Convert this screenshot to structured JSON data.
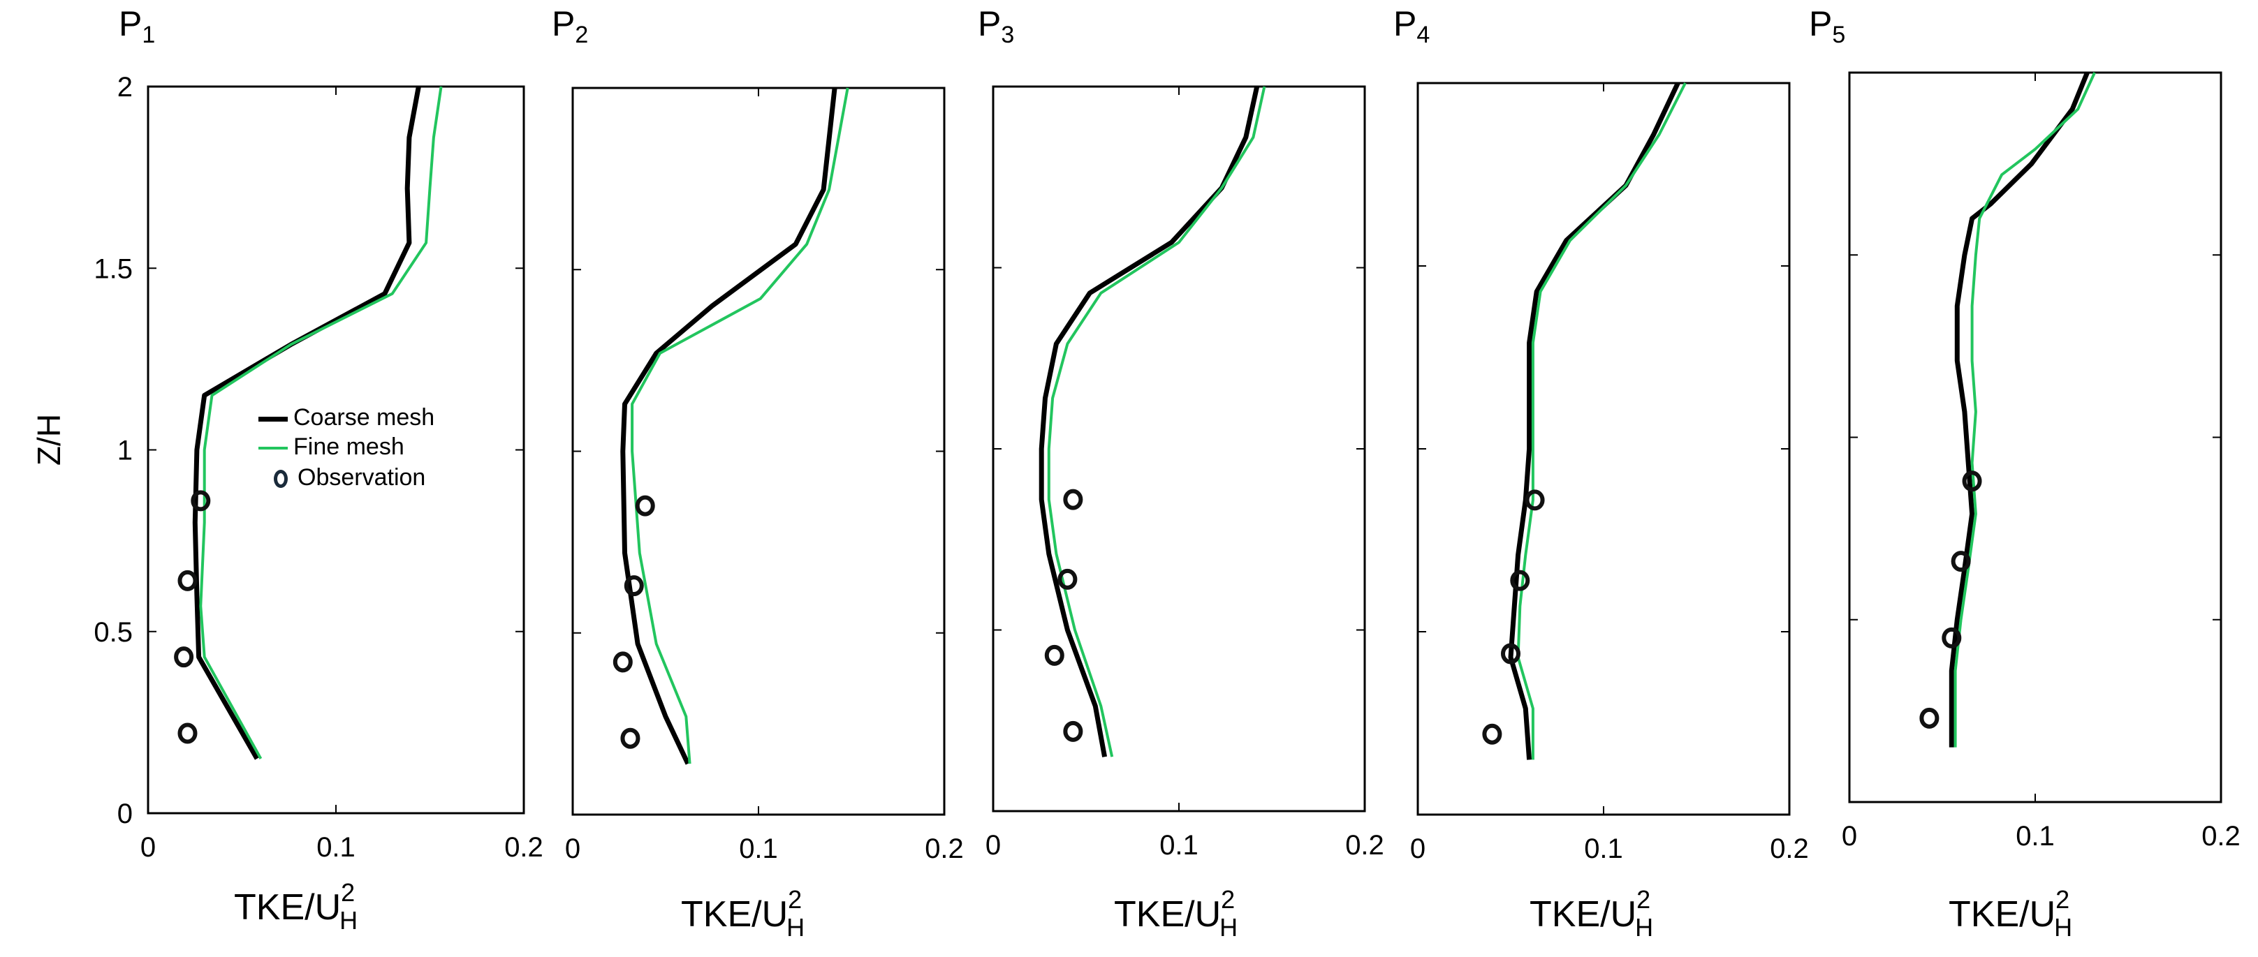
{
  "figure": {
    "ylabel": "Z/H",
    "xlabel_main": "TKE/U",
    "xlabel_sup": "2",
    "xlabel_sub": "H"
  },
  "legend": {
    "coarse": "Coarse mesh",
    "fine": "Fine mesh",
    "obs": "Observation"
  },
  "colors": {
    "coarse": "#000000",
    "fine": "#22c55e",
    "obs": "#111111"
  },
  "chart_data": [
    {
      "type": "line",
      "title": "P",
      "title_sub": "1",
      "xlim": [
        0,
        0.2
      ],
      "ylim": [
        0,
        2
      ],
      "xticks": [
        "0",
        "0.1",
        "0.2"
      ],
      "yticks": [
        "0",
        "0.5",
        "1",
        "1.5",
        "2"
      ],
      "series": [
        {
          "name": "Coarse mesh",
          "x": [
            0.058,
            0.027,
            0.026,
            0.025,
            0.026,
            0.03,
            0.076,
            0.126,
            0.139,
            0.138,
            0.139,
            0.144
          ],
          "y": [
            0.15,
            0.43,
            0.6,
            0.8,
            1.0,
            1.15,
            1.29,
            1.43,
            1.57,
            1.72,
            1.86,
            2.0
          ]
        },
        {
          "name": "Fine mesh",
          "x": [
            0.06,
            0.03,
            0.028,
            0.03,
            0.03,
            0.034,
            0.076,
            0.13,
            0.148,
            0.15,
            0.152,
            0.156
          ],
          "y": [
            0.15,
            0.43,
            0.57,
            0.8,
            1.0,
            1.15,
            1.29,
            1.43,
            1.57,
            1.72,
            1.86,
            2.0
          ]
        }
      ],
      "observations": {
        "x": [
          0.028,
          0.021,
          0.019,
          0.021
        ],
        "y": [
          0.86,
          0.64,
          0.43,
          0.22
        ]
      }
    },
    {
      "type": "line",
      "title": "P",
      "title_sub": "2",
      "xlim": [
        0,
        0.2
      ],
      "ylim": [
        0,
        2
      ],
      "xticks": [
        "0",
        "0.1",
        "0.2"
      ],
      "yticks": [],
      "series": [
        {
          "name": "Coarse mesh",
          "x": [
            0.062,
            0.05,
            0.035,
            0.028,
            0.027,
            0.028,
            0.045,
            0.075,
            0.12,
            0.135,
            0.141
          ],
          "y": [
            0.14,
            0.27,
            0.47,
            0.72,
            1.0,
            1.13,
            1.27,
            1.4,
            1.57,
            1.72,
            2.0
          ]
        },
        {
          "name": "Fine mesh",
          "x": [
            0.063,
            0.061,
            0.045,
            0.036,
            0.032,
            0.032,
            0.047,
            0.101,
            0.126,
            0.138,
            0.148
          ],
          "y": [
            0.14,
            0.27,
            0.47,
            0.72,
            1.0,
            1.13,
            1.27,
            1.42,
            1.57,
            1.72,
            2.0
          ]
        }
      ],
      "observations": {
        "x": [
          0.039,
          0.033,
          0.027,
          0.031
        ],
        "y": [
          0.85,
          0.63,
          0.42,
          0.21
        ]
      }
    },
    {
      "type": "line",
      "title": "P",
      "title_sub": "3",
      "xlim": [
        0,
        0.2
      ],
      "ylim": [
        0,
        2
      ],
      "xticks": [
        "0",
        "0.1",
        "0.2"
      ],
      "yticks": [],
      "series": [
        {
          "name": "Coarse mesh",
          "x": [
            0.06,
            0.055,
            0.04,
            0.03,
            0.026,
            0.026,
            0.028,
            0.034,
            0.052,
            0.096,
            0.123,
            0.136,
            0.142
          ],
          "y": [
            0.15,
            0.29,
            0.5,
            0.71,
            0.86,
            1.0,
            1.14,
            1.29,
            1.43,
            1.57,
            1.72,
            1.86,
            2.0
          ]
        },
        {
          "name": "Fine mesh",
          "x": [
            0.064,
            0.058,
            0.044,
            0.034,
            0.03,
            0.03,
            0.032,
            0.04,
            0.058,
            0.1,
            0.123,
            0.14,
            0.146
          ],
          "y": [
            0.15,
            0.29,
            0.5,
            0.71,
            0.86,
            1.0,
            1.14,
            1.29,
            1.43,
            1.57,
            1.72,
            1.86,
            2.0
          ]
        }
      ],
      "observations": {
        "x": [
          0.043,
          0.04,
          0.033,
          0.043
        ],
        "y": [
          0.86,
          0.64,
          0.43,
          0.22
        ]
      }
    },
    {
      "type": "line",
      "title": "P",
      "title_sub": "4",
      "xlim": [
        0,
        0.2
      ],
      "ylim": [
        0,
        2
      ],
      "xticks": [
        "0",
        "0.1",
        "0.2"
      ],
      "yticks": [],
      "series": [
        {
          "name": "Coarse mesh",
          "x": [
            0.06,
            0.058,
            0.05,
            0.052,
            0.054,
            0.058,
            0.06,
            0.06,
            0.064,
            0.08,
            0.112,
            0.127,
            0.14
          ],
          "y": [
            0.15,
            0.29,
            0.43,
            0.57,
            0.71,
            0.86,
            1.0,
            1.29,
            1.43,
            1.57,
            1.72,
            1.86,
            2.0
          ]
        },
        {
          "name": "Fine mesh",
          "x": [
            0.062,
            0.062,
            0.054,
            0.055,
            0.058,
            0.062,
            0.062,
            0.062,
            0.066,
            0.082,
            0.112,
            0.13,
            0.144
          ],
          "y": [
            0.15,
            0.29,
            0.43,
            0.57,
            0.71,
            0.86,
            1.0,
            1.29,
            1.43,
            1.57,
            1.72,
            1.86,
            2.0
          ]
        }
      ],
      "observations": {
        "x": [
          0.063,
          0.055,
          0.05,
          0.04
        ],
        "y": [
          0.86,
          0.64,
          0.44,
          0.22
        ]
      }
    },
    {
      "type": "line",
      "title": "P",
      "title_sub": "5",
      "xlim": [
        0,
        0.2
      ],
      "ylim": [
        0,
        2
      ],
      "xticks": [
        "0",
        "0.1",
        "0.2"
      ],
      "yticks": [],
      "series": [
        {
          "name": "Coarse mesh",
          "x": [
            0.055,
            0.055,
            0.058,
            0.062,
            0.066,
            0.064,
            0.062,
            0.058,
            0.058,
            0.062,
            0.066,
            0.076,
            0.098,
            0.12,
            0.128
          ],
          "y": [
            0.15,
            0.36,
            0.5,
            0.64,
            0.79,
            0.93,
            1.07,
            1.21,
            1.36,
            1.5,
            1.6,
            1.64,
            1.75,
            1.9,
            2.0
          ]
        },
        {
          "name": "Fine mesh",
          "x": [
            0.057,
            0.057,
            0.06,
            0.064,
            0.068,
            0.066,
            0.068,
            0.066,
            0.066,
            0.068,
            0.07,
            0.082,
            0.1,
            0.123,
            0.132
          ],
          "y": [
            0.15,
            0.36,
            0.5,
            0.64,
            0.79,
            0.93,
            1.07,
            1.21,
            1.36,
            1.5,
            1.6,
            1.72,
            1.79,
            1.9,
            2.0
          ]
        }
      ],
      "observations": {
        "x": [
          0.066,
          0.06,
          0.055,
          0.043
        ],
        "y": [
          0.88,
          0.66,
          0.45,
          0.23
        ]
      }
    }
  ]
}
